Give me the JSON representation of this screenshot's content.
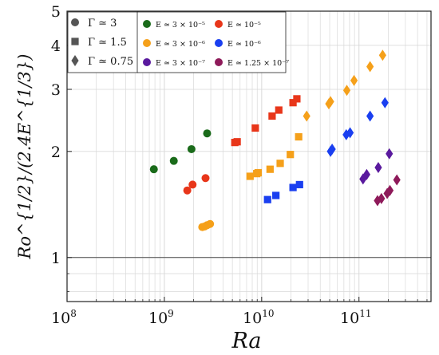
{
  "chart_data": {
    "type": "scatter",
    "title": "",
    "xlabel": "Ra",
    "ylabel": "Ro^{1/2}/(2.4E^{1/3})",
    "xscale": "log",
    "yscale": "log",
    "xlim": [
      100000000.0,
      550000000000.0
    ],
    "ylim": [
      0.75,
      5
    ],
    "grid": true,
    "reference_line_y": 1,
    "x_ticks": [
      {
        "base": "10",
        "exp": "8"
      },
      {
        "base": "10",
        "exp": "9"
      },
      {
        "base": "10",
        "exp": "10"
      },
      {
        "base": "10",
        "exp": "11"
      }
    ],
    "y_ticks": [
      "1",
      "2",
      "3",
      "4",
      "5"
    ],
    "y_tick_values": [
      1,
      2,
      3,
      4,
      5
    ],
    "legend_shape": [
      {
        "marker": "circle",
        "label": "Γ ≃ 3"
      },
      {
        "marker": "square",
        "label": "Γ ≃ 1.5"
      },
      {
        "marker": "diamond",
        "label": "Γ ≃ 0.75"
      }
    ],
    "legend_color": [
      {
        "color": "#1a6b1a",
        "label": "E ≃ 3 × 10⁻⁵"
      },
      {
        "color": "#e8361a",
        "label": "E ≃ 10⁻⁵"
      },
      {
        "color": "#f5a01a",
        "label": "E ≃ 3 × 10⁻⁶"
      },
      {
        "color": "#1a3ff0",
        "label": "E ≃ 10⁻⁶"
      },
      {
        "color": "#5a1a9e",
        "label": "E ≃ 3 × 10⁻⁷"
      },
      {
        "color": "#8e1a5a",
        "label": "E ≃ 1.25 × 10⁻⁷"
      }
    ],
    "series": [
      {
        "color": "#1a6b1a",
        "marker": "circle",
        "points": [
          [
            780000000.0,
            1.78
          ],
          [
            1250000000.0,
            1.88
          ],
          [
            1900000000.0,
            2.03
          ],
          [
            2750000000.0,
            2.25
          ]
        ]
      },
      {
        "color": "#e8361a",
        "marker": "circle",
        "points": [
          [
            1720000000.0,
            1.55
          ],
          [
            1950000000.0,
            1.61
          ],
          [
            2650000000.0,
            1.68
          ]
        ]
      },
      {
        "color": "#f5a01a",
        "marker": "circle",
        "points": [
          [
            2450000000.0,
            1.22
          ],
          [
            2600000000.0,
            1.225
          ],
          [
            2750000000.0,
            1.235
          ],
          [
            2950000000.0,
            1.245
          ]
        ]
      },
      {
        "color": "#e8361a",
        "marker": "square",
        "points": [
          [
            5300000000.0,
            2.12
          ],
          [
            5600000000.0,
            2.13
          ],
          [
            8600000000.0,
            2.33
          ],
          [
            12800000000.0,
            2.52
          ],
          [
            15000000000.0,
            2.62
          ],
          [
            21000000000.0,
            2.75
          ],
          [
            23000000000.0,
            2.82
          ]
        ]
      },
      {
        "color": "#f5a01a",
        "marker": "square",
        "points": [
          [
            7600000000.0,
            1.7
          ],
          [
            8900000000.0,
            1.73
          ],
          [
            9200000000.0,
            1.74
          ],
          [
            12200000000.0,
            1.78
          ],
          [
            15500000000.0,
            1.85
          ],
          [
            19700000000.0,
            1.96
          ],
          [
            24000000000.0,
            2.2
          ]
        ]
      },
      {
        "color": "#1a3ff0",
        "marker": "square",
        "points": [
          [
            11500000000.0,
            1.46
          ],
          [
            14000000000.0,
            1.5
          ],
          [
            21000000000.0,
            1.58
          ],
          [
            24500000000.0,
            1.61
          ]
        ]
      },
      {
        "color": "#f5a01a",
        "marker": "diamond",
        "points": [
          [
            29000000000.0,
            2.52
          ],
          [
            49000000000.0,
            2.73
          ],
          [
            51000000000.0,
            2.77
          ],
          [
            75000000000.0,
            2.98
          ],
          [
            89000000000.0,
            3.18
          ],
          [
            130000000000.0,
            3.48
          ],
          [
            175000000000.0,
            3.75
          ]
        ]
      },
      {
        "color": "#1a3ff0",
        "marker": "diamond",
        "points": [
          [
            51000000000.0,
            2.0
          ],
          [
            53000000000.0,
            2.03
          ],
          [
            74000000000.0,
            2.23
          ],
          [
            81000000000.0,
            2.26
          ],
          [
            130000000000.0,
            2.52
          ],
          [
            185000000000.0,
            2.75
          ]
        ]
      },
      {
        "color": "#5a1a9e",
        "marker": "diamond",
        "points": [
          [
            110000000000.0,
            1.67
          ],
          [
            120000000000.0,
            1.72
          ],
          [
            158000000000.0,
            1.8
          ],
          [
            205000000000.0,
            1.97
          ]
        ]
      },
      {
        "color": "#8e1a5a",
        "marker": "diamond",
        "points": [
          [
            155000000000.0,
            1.45
          ],
          [
            170000000000.0,
            1.47
          ],
          [
            195000000000.0,
            1.52
          ],
          [
            208000000000.0,
            1.55
          ],
          [
            245000000000.0,
            1.66
          ]
        ]
      }
    ]
  }
}
